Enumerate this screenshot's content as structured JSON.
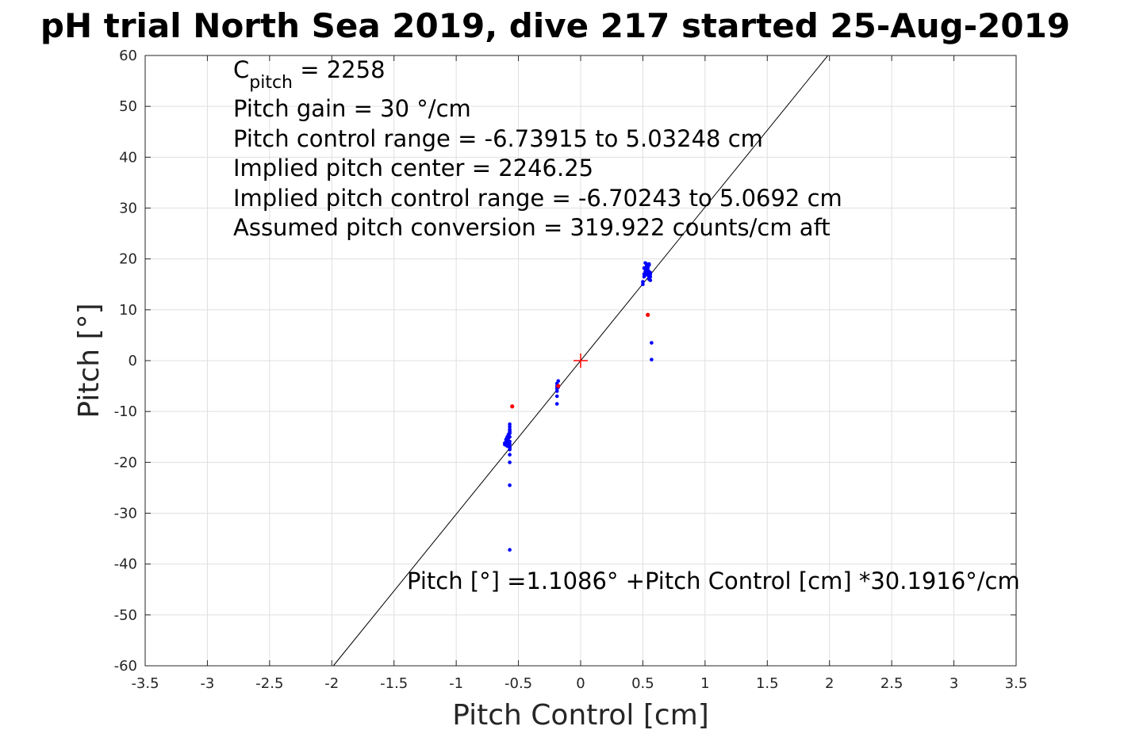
{
  "chart_data": {
    "type": "scatter",
    "title": "pH trial North Sea 2019, dive 217 started 25-Aug-2019",
    "xlabel": "Pitch Control [cm]",
    "ylabel": "Pitch [°]",
    "xlim": [
      -3.5,
      3.5
    ],
    "ylim": [
      -60,
      60
    ],
    "grid": true,
    "x_ticks": [
      -3.5,
      -3,
      -2.5,
      -2,
      -1.5,
      -1,
      -0.5,
      0,
      0.5,
      1,
      1.5,
      2,
      2.5,
      3,
      3.5
    ],
    "y_ticks": [
      -60,
      -50,
      -40,
      -30,
      -20,
      -10,
      0,
      10,
      20,
      30,
      40,
      50,
      60
    ],
    "colors": {
      "points": "#0000ff",
      "outliers": "#ff0000",
      "center_marker": "#ff0000",
      "fit_line": "#000000"
    },
    "fit_line": {
      "intercept": 1.1086,
      "slope": 30.1916
    },
    "center_marker": {
      "x": 0.0,
      "y": 0.0
    },
    "series": [
      {
        "role": "points",
        "x": [
          -0.61,
          -0.6,
          -0.6,
          -0.59,
          -0.59,
          -0.58,
          -0.58,
          -0.58,
          -0.57,
          -0.57,
          -0.57,
          -0.57,
          -0.57,
          -0.57,
          -0.57,
          -0.57,
          -0.57,
          -0.58,
          -0.59,
          -0.6,
          -0.57,
          -0.57,
          -0.58,
          -0.59,
          -0.6,
          -0.61,
          -0.57,
          -0.57,
          -0.57,
          -0.57,
          -0.57,
          -0.19,
          -0.19,
          -0.19,
          -0.18,
          -0.19,
          -0.19,
          -0.19,
          -0.18,
          0.5,
          0.51,
          0.51,
          0.52,
          0.52,
          0.53,
          0.53,
          0.53,
          0.54,
          0.54,
          0.54,
          0.55,
          0.55,
          0.55,
          0.56,
          0.56,
          0.56,
          0.51,
          0.52,
          0.53,
          0.54,
          0.55,
          0.56,
          0.52,
          0.53,
          0.54,
          0.55,
          0.5,
          0.57,
          0.57
        ],
        "y": [
          -16.5,
          -16.0,
          -15.5,
          -15.0,
          -16.8,
          -14.5,
          -16.2,
          -15.8,
          -13.5,
          -13.0,
          -12.5,
          -14.0,
          -17.0,
          -17.5,
          -18.5,
          -20.0,
          -24.5,
          -15.2,
          -16.0,
          -16.3,
          -37.2,
          -15.0,
          -14.8,
          -15.6,
          -16.6,
          -16.2,
          -15.9,
          -14.3,
          -16.4,
          -17.2,
          -13.8,
          -4.5,
          -5.0,
          -5.5,
          -4.0,
          -6.0,
          -7.0,
          -8.5,
          -5.2,
          15.0,
          16.5,
          17.0,
          17.5,
          18.0,
          18.5,
          19.0,
          17.2,
          18.3,
          17.8,
          16.8,
          17.5,
          18.8,
          16.2,
          16.5,
          17.0,
          15.8,
          18.2,
          19.2,
          18.0,
          17.6,
          19.0,
          17.3,
          16.9,
          18.6,
          17.4,
          16.0,
          15.5,
          3.5,
          0.2
        ]
      },
      {
        "role": "outliers",
        "x": [
          -0.55,
          -0.18,
          0.54
        ],
        "y": [
          -9.0,
          -5.0,
          9.0
        ]
      }
    ],
    "annotations": {
      "c_pitch_prefix": "C",
      "c_pitch_sub": "pitch",
      "c_pitch_value": " = 2258",
      "gain": "Pitch gain = 30 °/cm",
      "control_range": "Pitch control range = -6.73915 to 5.03248 cm",
      "implied_center": "Implied pitch center = 2246.25",
      "implied_range": "Implied pitch control range = -6.70243 to 5.0692 cm",
      "conversion": "Assumed pitch conversion = 319.922 counts/cm aft",
      "fit_equation": "Pitch [°] =1.1086° +Pitch Control [cm] *30.1916°/cm"
    }
  }
}
